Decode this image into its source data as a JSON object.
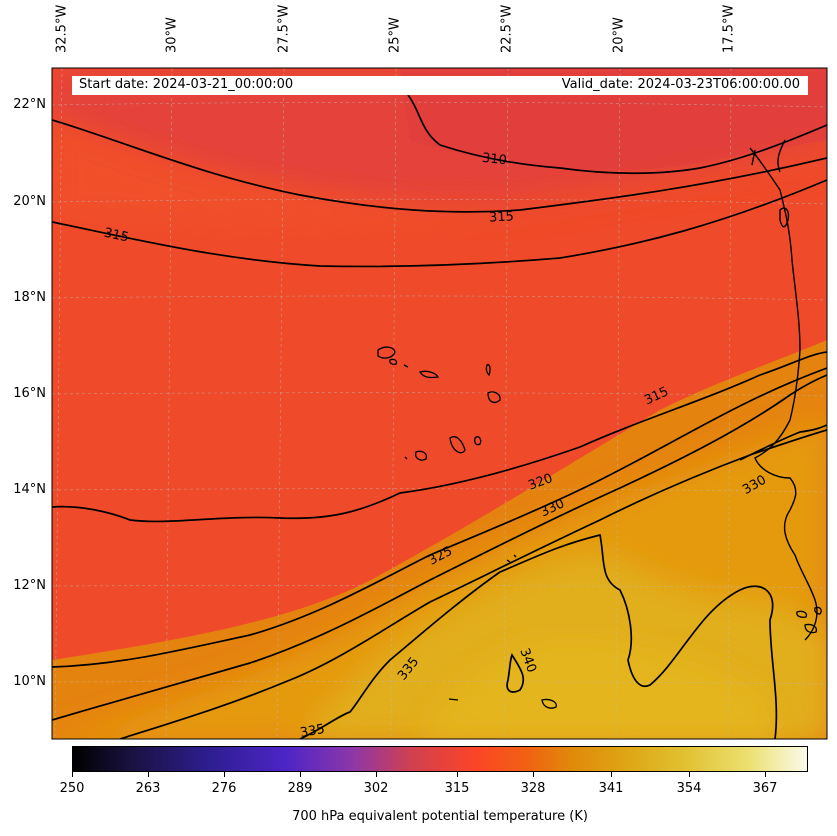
{
  "header": {
    "start_date": "Start date: 2024-03-21_00:00:00",
    "valid_date": "Valid_date: 2024-03-23T06:00:00.00"
  },
  "longitude_labels": [
    "32.5°W",
    "30°W",
    "27.5°W",
    "25°W",
    "22.5°W",
    "20°W",
    "17.5°W"
  ],
  "latitude_labels": [
    "22°N",
    "20°N",
    "18°N",
    "16°N",
    "14°N",
    "12°N",
    "10°N"
  ],
  "contour_labels": [
    "310",
    "315",
    "315",
    "315",
    "320",
    "330",
    "325",
    "330",
    "335",
    "340",
    "335"
  ],
  "colorbar": {
    "ticks": [
      "250",
      "263",
      "276",
      "289",
      "302",
      "315",
      "328",
      "341",
      "354",
      "367"
    ],
    "label": "700 hPa equivalent potential temperature (K)"
  },
  "colors": {
    "field_cool": "#e4433a",
    "field_mid": "#f24a28",
    "field_warm": "#e58d0d",
    "field_hot": "#e1ab17",
    "contour": "#000000"
  }
}
